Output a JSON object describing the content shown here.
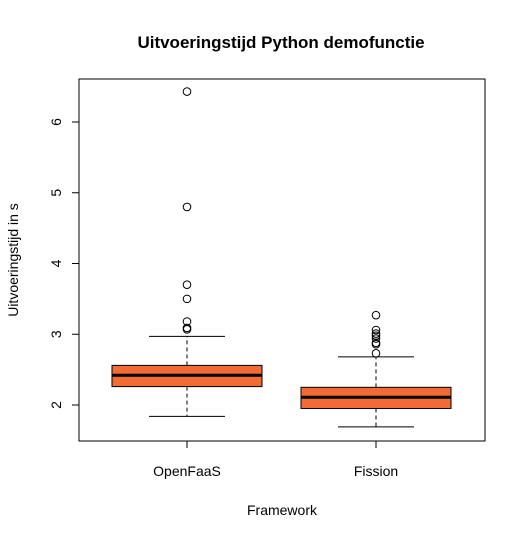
{
  "chart_data": {
    "type": "boxplot",
    "title": "Uitvoeringstijd Python demofunctie",
    "xlabel": "Framework",
    "ylabel": "Uitvoeringstijd in s",
    "ylim": [
      1.5,
      6.55
    ],
    "yticks": [
      2,
      3,
      4,
      5,
      6
    ],
    "box_color": "#F26B35",
    "grid": false,
    "categories": [
      "OpenFaaS",
      "Fission"
    ],
    "boxes": [
      {
        "category": "OpenFaaS",
        "whisker_low": 1.84,
        "q1": 2.26,
        "median": 2.42,
        "q3": 2.56,
        "whisker_high": 2.97,
        "outliers": [
          3.07,
          3.09,
          3.18,
          3.5,
          3.7,
          4.8,
          6.43
        ]
      },
      {
        "category": "Fission",
        "whisker_low": 1.69,
        "q1": 1.95,
        "median": 2.11,
        "q3": 2.25,
        "whisker_high": 2.68,
        "outliers": [
          2.73,
          2.86,
          2.88,
          2.94,
          2.98,
          3.01,
          3.06,
          3.27
        ]
      }
    ]
  }
}
